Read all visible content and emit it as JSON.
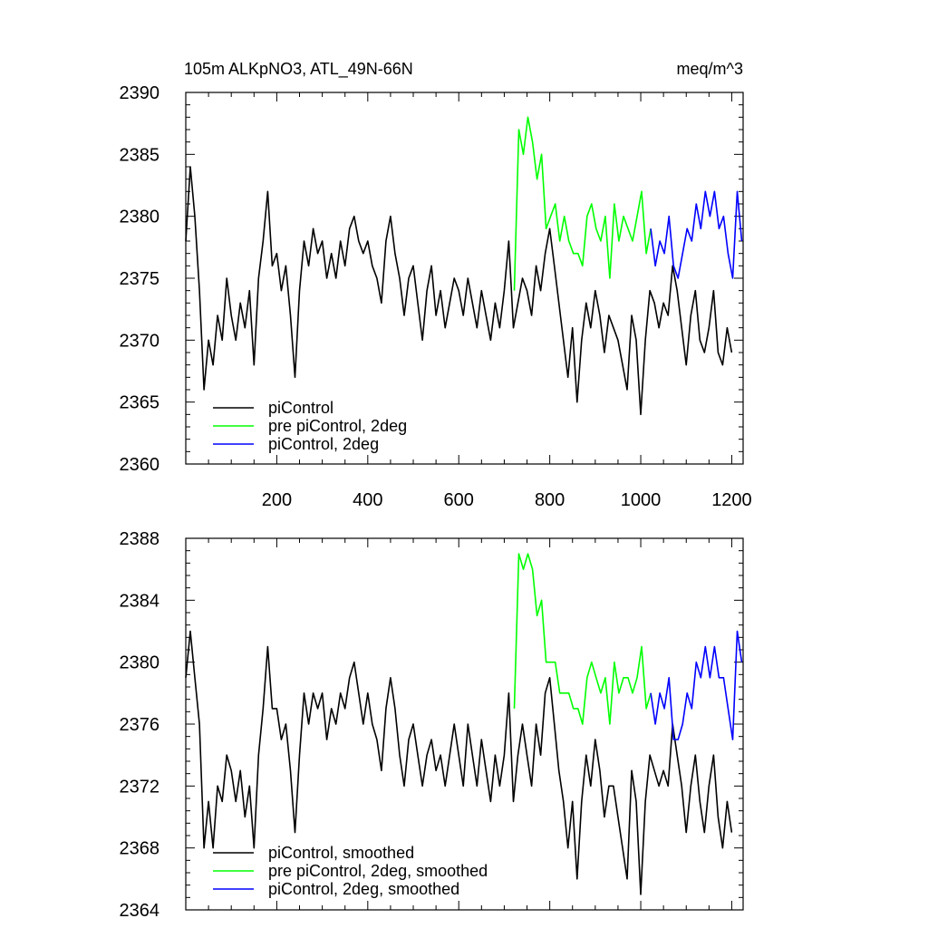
{
  "chart_data": [
    {
      "type": "line",
      "title": "105m ALKpNO3, ATL_49N-66N",
      "units": "meq/m^3",
      "xlim": [
        0,
        1225
      ],
      "ylim": [
        2360,
        2390
      ],
      "xticks": [
        200,
        400,
        600,
        800,
        1000,
        1200
      ],
      "xtick_labels": [
        "200",
        "400",
        "600",
        "800",
        "1000",
        "1200"
      ],
      "yticks": [
        2360,
        2365,
        2370,
        2375,
        2380,
        2385,
        2390
      ],
      "ytick_labels": [
        "2360",
        "2365",
        "2370",
        "2375",
        "2380",
        "2385",
        "2390"
      ],
      "grid": false,
      "legend_position": "bottom-left",
      "series": [
        {
          "name": "piControl",
          "color": "#000000",
          "x": [
            0,
            10,
            20,
            30,
            40,
            50,
            60,
            70,
            80,
            90,
            100,
            110,
            120,
            130,
            140,
            150,
            160,
            170,
            180,
            190,
            200,
            210,
            220,
            230,
            240,
            250,
            260,
            270,
            280,
            290,
            300,
            310,
            320,
            330,
            340,
            350,
            360,
            370,
            380,
            390,
            400,
            410,
            420,
            430,
            440,
            450,
            460,
            470,
            480,
            490,
            500,
            510,
            520,
            530,
            540,
            550,
            560,
            570,
            580,
            590,
            600,
            610,
            620,
            630,
            640,
            650,
            660,
            670,
            680,
            690,
            700,
            710,
            720,
            730,
            740,
            750,
            760,
            770,
            780,
            790,
            800,
            810,
            820,
            830,
            840,
            850,
            860,
            870,
            880,
            890,
            900,
            910,
            920,
            930,
            940,
            950,
            960,
            970,
            980,
            990,
            1000,
            1010,
            1020,
            1030,
            1040,
            1050,
            1060,
            1070,
            1080,
            1090,
            1100,
            1110,
            1120,
            1130,
            1140,
            1150,
            1160,
            1170,
            1180,
            1190,
            1200
          ],
          "y": [
            2378,
            2384,
            2380,
            2374,
            2366,
            2370,
            2368,
            2372,
            2370,
            2375,
            2372,
            2370,
            2373,
            2371,
            2374,
            2368,
            2375,
            2378,
            2382,
            2376,
            2377,
            2374,
            2376,
            2372,
            2367,
            2374,
            2378,
            2376,
            2379,
            2377,
            2378,
            2375,
            2377,
            2375,
            2378,
            2376,
            2379,
            2380,
            2378,
            2377,
            2378,
            2376,
            2375,
            2373,
            2378,
            2380,
            2377,
            2375,
            2372,
            2375,
            2376,
            2373,
            2370,
            2374,
            2376,
            2372,
            2374,
            2371,
            2373,
            2375,
            2374,
            2372,
            2375,
            2373,
            2371,
            2374,
            2372,
            2370,
            2373,
            2371,
            2374,
            2378,
            2371,
            2373,
            2375,
            2374,
            2372,
            2376,
            2374,
            2377,
            2379,
            2376,
            2373,
            2370,
            2367,
            2371,
            2365,
            2370,
            2373,
            2371,
            2374,
            2372,
            2369,
            2372,
            2371,
            2370,
            2368,
            2366,
            2372,
            2370,
            2364,
            2370,
            2374,
            2373,
            2371,
            2373,
            2372,
            2376,
            2374,
            2371,
            2368,
            2372,
            2374,
            2370,
            2369,
            2371,
            2374,
            2369,
            2368,
            2371,
            2369
          ]
        },
        {
          "name": "pre piControl, 2deg",
          "color": "#00ff00",
          "x": [
            722,
            732,
            742,
            752,
            762,
            772,
            782,
            792,
            802,
            812,
            822,
            832,
            842,
            852,
            862,
            872,
            882,
            892,
            902,
            912,
            922,
            932,
            942,
            952,
            962,
            972,
            982,
            992,
            1002,
            1012,
            1022
          ],
          "y": [
            2374,
            2387,
            2385,
            2388,
            2386,
            2383,
            2385,
            2379,
            2380,
            2381,
            2378,
            2380,
            2378,
            2377,
            2377,
            2376,
            2380,
            2381,
            2379,
            2378,
            2380,
            2375,
            2381,
            2378,
            2380,
            2379,
            2378,
            2380,
            2382,
            2377,
            2379
          ]
        },
        {
          "name": "piControl, 2deg",
          "color": "#0000ff",
          "x": [
            1022,
            1032,
            1042,
            1052,
            1062,
            1072,
            1082,
            1092,
            1102,
            1112,
            1122,
            1132,
            1142,
            1152,
            1162,
            1172,
            1182,
            1192,
            1202,
            1212,
            1222
          ],
          "y": [
            2379,
            2376,
            2378,
            2377,
            2380,
            2376,
            2375,
            2377,
            2379,
            2378,
            2381,
            2379,
            2382,
            2380,
            2382,
            2379,
            2380,
            2377,
            2375,
            2382,
            2378
          ]
        }
      ]
    },
    {
      "type": "line",
      "title": "",
      "xlim": [
        0,
        1225
      ],
      "ylim": [
        2364,
        2388
      ],
      "xticks": [
        200,
        400,
        600,
        800,
        1000,
        1200
      ],
      "yticks": [
        2364,
        2368,
        2372,
        2376,
        2380,
        2384,
        2388
      ],
      "ytick_labels": [
        "2364",
        "2368",
        "2372",
        "2376",
        "2380",
        "2384",
        "2388"
      ],
      "grid": false,
      "legend_position": "bottom-left",
      "series": [
        {
          "name": "piControl, smoothed",
          "color": "#000000",
          "x": [
            0,
            10,
            20,
            30,
            40,
            50,
            60,
            70,
            80,
            90,
            100,
            110,
            120,
            130,
            140,
            150,
            160,
            170,
            180,
            190,
            200,
            210,
            220,
            230,
            240,
            250,
            260,
            270,
            280,
            290,
            300,
            310,
            320,
            330,
            340,
            350,
            360,
            370,
            380,
            390,
            400,
            410,
            420,
            430,
            440,
            450,
            460,
            470,
            480,
            490,
            500,
            510,
            520,
            530,
            540,
            550,
            560,
            570,
            580,
            590,
            600,
            610,
            620,
            630,
            640,
            650,
            660,
            670,
            680,
            690,
            700,
            710,
            720,
            730,
            740,
            750,
            760,
            770,
            780,
            790,
            800,
            810,
            820,
            830,
            840,
            850,
            860,
            870,
            880,
            890,
            900,
            910,
            920,
            930,
            940,
            950,
            960,
            970,
            980,
            990,
            1000,
            1010,
            1020,
            1030,
            1040,
            1050,
            1060,
            1070,
            1080,
            1090,
            1100,
            1110,
            1120,
            1130,
            1140,
            1150,
            1160,
            1170,
            1180,
            1190,
            1200
          ],
          "y": [
            2379,
            2382,
            2379,
            2376,
            2368,
            2371,
            2368,
            2372,
            2371,
            2374,
            2373,
            2371,
            2373,
            2370,
            2372,
            2368,
            2374,
            2377,
            2381,
            2377,
            2377,
            2375,
            2376,
            2373,
            2369,
            2374,
            2378,
            2376,
            2378,
            2377,
            2378,
            2375,
            2377,
            2376,
            2378,
            2377,
            2379,
            2380,
            2378,
            2376,
            2378,
            2376,
            2375,
            2373,
            2377,
            2379,
            2377,
            2374,
            2372,
            2375,
            2376,
            2374,
            2372,
            2374,
            2375,
            2373,
            2374,
            2372,
            2374,
            2376,
            2374,
            2372,
            2376,
            2374,
            2372,
            2375,
            2373,
            2371,
            2374,
            2372,
            2374,
            2378,
            2371,
            2374,
            2376,
            2374,
            2372,
            2376,
            2374,
            2378,
            2379,
            2376,
            2373,
            2371,
            2368,
            2371,
            2366,
            2371,
            2374,
            2372,
            2375,
            2373,
            2370,
            2372,
            2372,
            2370,
            2368,
            2366,
            2373,
            2371,
            2365,
            2371,
            2374,
            2373,
            2372,
            2373,
            2372,
            2376,
            2374,
            2372,
            2369,
            2372,
            2374,
            2371,
            2369,
            2372,
            2374,
            2370,
            2368,
            2371,
            2369
          ]
        },
        {
          "name": "pre piControl, 2deg, smoothed",
          "color": "#00ff00",
          "x": [
            722,
            732,
            742,
            752,
            762,
            772,
            782,
            792,
            802,
            812,
            822,
            832,
            842,
            852,
            862,
            872,
            882,
            892,
            902,
            912,
            922,
            932,
            942,
            952,
            962,
            972,
            982,
            992,
            1002,
            1012,
            1022
          ],
          "y": [
            2377,
            2387,
            2386,
            2387,
            2386,
            2383,
            2384,
            2380,
            2380,
            2380,
            2378,
            2378,
            2378,
            2377,
            2377,
            2376,
            2379,
            2380,
            2379,
            2378,
            2379,
            2376,
            2380,
            2378,
            2379,
            2379,
            2378,
            2379,
            2381,
            2377,
            2378
          ]
        },
        {
          "name": "piControl, 2deg, smoothed",
          "color": "#0000ff",
          "x": [
            1022,
            1032,
            1042,
            1052,
            1062,
            1072,
            1082,
            1092,
            1102,
            1112,
            1122,
            1132,
            1142,
            1152,
            1162,
            1172,
            1182,
            1192,
            1202,
            1212,
            1222
          ],
          "y": [
            2378,
            2376,
            2378,
            2377,
            2379,
            2375,
            2375,
            2376,
            2378,
            2377,
            2380,
            2379,
            2381,
            2379,
            2381,
            2379,
            2379,
            2377,
            2375,
            2382,
            2380
          ]
        }
      ]
    }
  ]
}
